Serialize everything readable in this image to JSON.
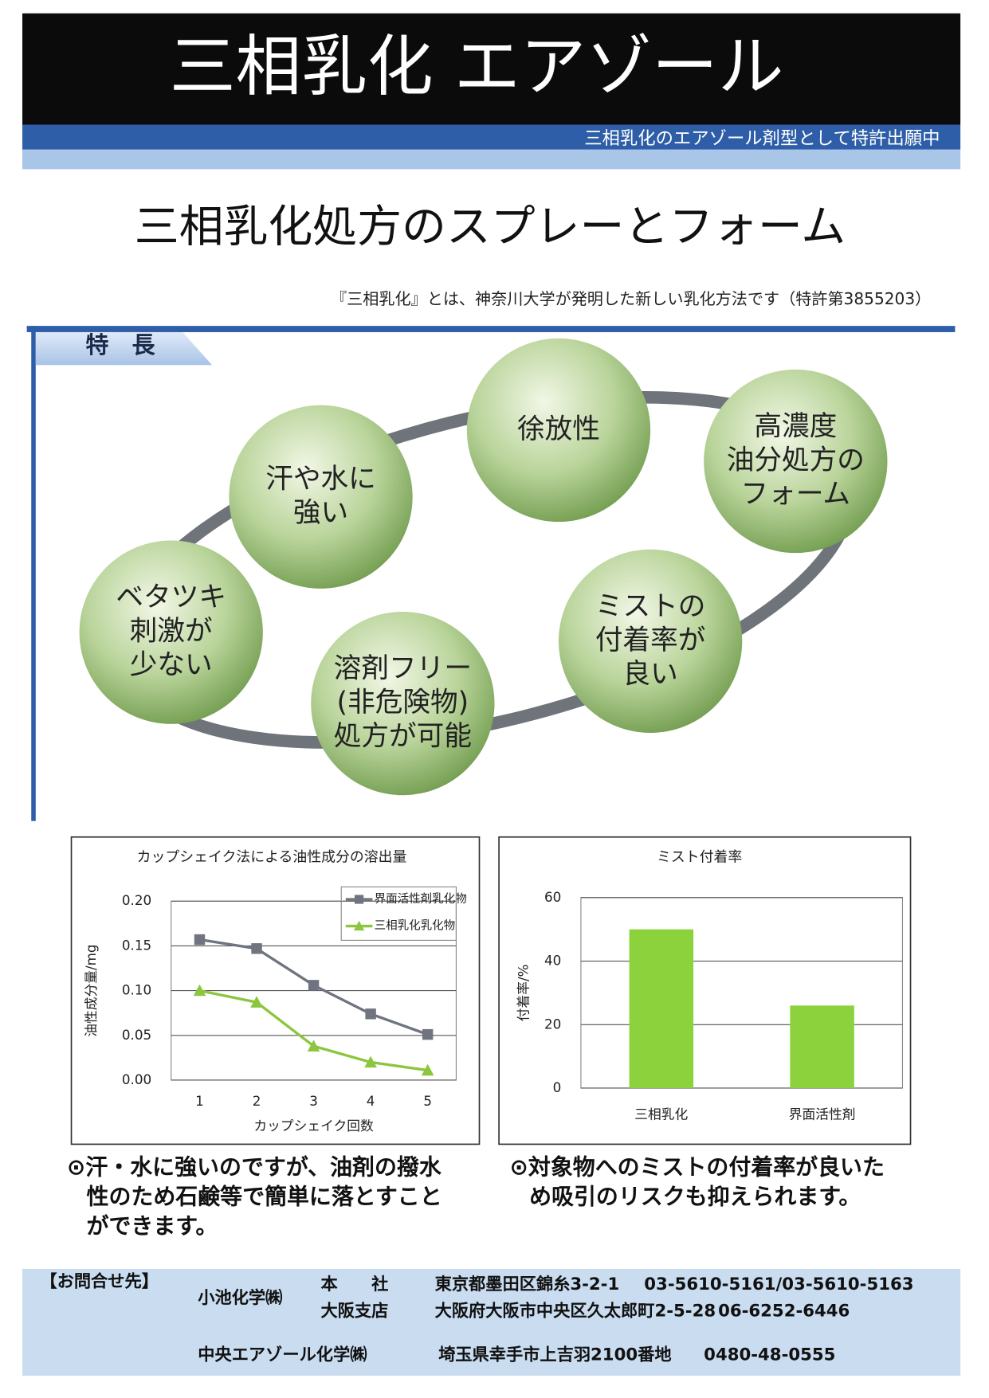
{
  "header": {
    "title": "三相乳化 エアゾール",
    "subtitle": "三相乳化のエアゾール剤型として特許出願中"
  },
  "main_title": "三相乳化処方のスプレーとフォーム",
  "note": "『三相乳化』とは、神奈川大学が発明した新しい乳化方法です（特許第3855203）",
  "features": {
    "heading": "特　長",
    "items": [
      {
        "lines": [
          "汗や水に",
          "強い"
        ]
      },
      {
        "lines": [
          "徐放性"
        ]
      },
      {
        "lines": [
          "高濃度",
          "油分処方の",
          "フォーム"
        ]
      },
      {
        "lines": [
          "ベタツキ",
          "刺激が",
          "少ない"
        ]
      },
      {
        "lines": [
          "溶剤フリー",
          "(非危険物)",
          "処方が可能"
        ]
      },
      {
        "lines": [
          "ミストの",
          "付着率が",
          "良い"
        ]
      }
    ]
  },
  "chart_data": [
    {
      "type": "line",
      "title": "カップシェイク法による油性成分の溶出量",
      "x_label": "カップシェイク回数",
      "y_label": "油性成分量/mg",
      "categories": [
        "1",
        "2",
        "3",
        "4",
        "5"
      ],
      "series": [
        {
          "name": "界面活性剤乳化物",
          "color": "#6f7480",
          "values": [
            0.157,
            0.147,
            0.106,
            0.074,
            0.051
          ]
        },
        {
          "name": "三相乳化乳化物",
          "color": "#8cc63f",
          "values": [
            0.1,
            0.087,
            0.038,
            0.02,
            0.011
          ]
        }
      ],
      "ylim": [
        0,
        0.2
      ],
      "yticks": [
        {
          "value": 0,
          "label": "0.00"
        },
        {
          "value": 0.05,
          "label": "0.05"
        },
        {
          "value": 0.1,
          "label": "0.10"
        },
        {
          "value": 0.15,
          "label": "0.15"
        },
        {
          "value": 0.2,
          "label": "0.20"
        }
      ],
      "grid": true,
      "legend": "top-right"
    },
    {
      "type": "bar",
      "title": "ミスト付着率",
      "y_label": "付着率/%",
      "categories": [
        "三相乳化",
        "界面活性剤"
      ],
      "values": [
        50,
        26
      ],
      "color": "#8cd23c",
      "ylim": [
        0,
        60
      ],
      "yticks": [
        0,
        20,
        40,
        60
      ],
      "grid": true
    }
  ],
  "captions": [
    {
      "lines": [
        "⊙汗・水に強いのですが、油剤の撥水",
        "性のため石鹸等で簡単に落とすこと",
        "ができます。"
      ]
    },
    {
      "lines": [
        "⊙対象物へのミストの付着率が良いた",
        "め吸引のリスクも抑えられます。"
      ]
    }
  ],
  "contact": {
    "label": "【お問合せ先】",
    "company1": {
      "name": "小池化学㈱",
      "offices": [
        {
          "office": "本　　社",
          "address": "東京都墨田区錦糸3-2-1",
          "phone": "03-5610-5161/03-5610-5163"
        },
        {
          "office": "大阪支店",
          "address": "大阪府大阪市中央区久太郎町2-5-28",
          "phone": "06-6252-6446"
        }
      ]
    },
    "company2": {
      "name": "中央エアゾール化学㈱",
      "address": "埼玉県幸手市上吉羽2100番地",
      "phone": "0480-48-0555"
    }
  }
}
